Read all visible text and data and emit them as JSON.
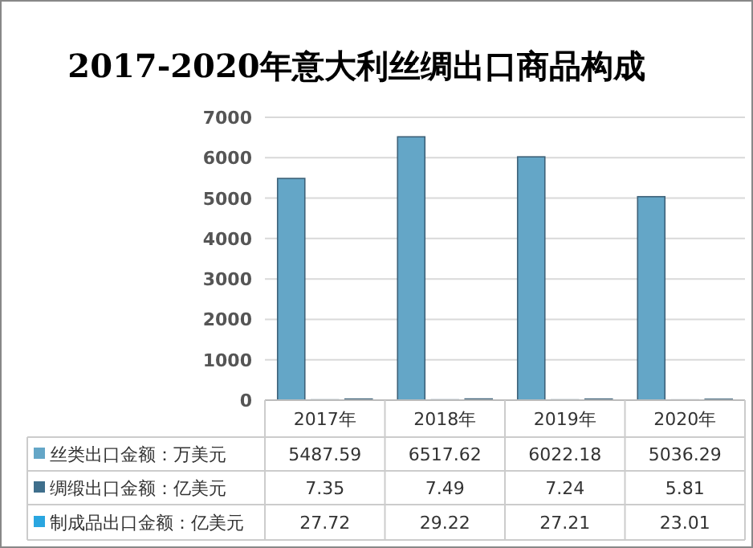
{
  "chart_data": {
    "type": "bar",
    "title": "2017-2020年意大利丝绸出口商品构成",
    "categories": [
      "2017年",
      "2018年",
      "2019年",
      "2020年"
    ],
    "series": [
      {
        "name": "丝类出口金额：万美元",
        "color": "#64a6c7",
        "values": [
          5487.59,
          6517.62,
          6022.18,
          5036.29
        ]
      },
      {
        "name": "绸缎出口金额：亿美元",
        "color": "#3f6f8c",
        "values": [
          7.35,
          7.49,
          7.24,
          5.81
        ]
      },
      {
        "name": "制成品出口金额：亿美元",
        "color": "#2aa6e0",
        "values": [
          27.72,
          29.22,
          27.21,
          23.01
        ]
      }
    ],
    "ylim": [
      0,
      7000
    ],
    "yticks": [
      0,
      1000,
      2000,
      3000,
      4000,
      5000,
      6000,
      7000
    ],
    "grid": "y",
    "legend": "bottom",
    "data_labels": true
  }
}
